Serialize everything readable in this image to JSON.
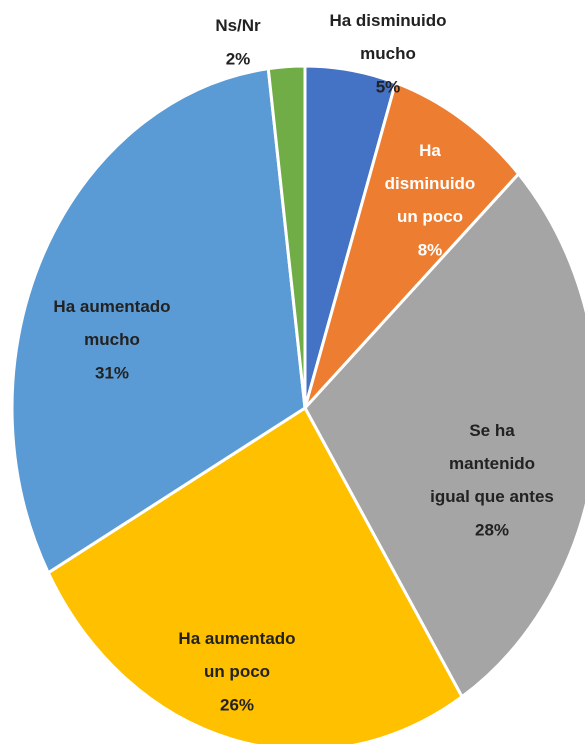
{
  "chart_data": {
    "type": "pie",
    "categories": [
      "Ha disminuido mucho",
      "Ha disminuido un poco",
      "Se ha mantenido igual que antes",
      "Ha aumentado un poco",
      "Ha aumentado mucho",
      "Ns/Nr"
    ],
    "values": [
      5,
      8,
      28,
      26,
      31,
      2
    ],
    "value_labels": [
      "5%",
      "8%",
      "28%",
      "26%",
      "31%",
      "2%"
    ],
    "colors": [
      "#4472c4",
      "#ed7d31",
      "#a5a5a5",
      "#ffc000",
      "#5b9bd5",
      "#70ad47"
    ]
  }
}
